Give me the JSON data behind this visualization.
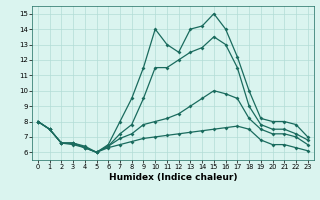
{
  "xlabel": "Humidex (Indice chaleur)",
  "xlim": [
    -0.5,
    23.5
  ],
  "ylim": [
    5.5,
    15.5
  ],
  "yticks": [
    6,
    7,
    8,
    9,
    10,
    11,
    12,
    13,
    14,
    15
  ],
  "xticks": [
    0,
    1,
    2,
    3,
    4,
    5,
    6,
    7,
    8,
    9,
    10,
    11,
    12,
    13,
    14,
    15,
    16,
    17,
    18,
    19,
    20,
    21,
    22,
    23
  ],
  "bg_color": "#daf4ef",
  "line_color": "#1a6b5e",
  "grid_color": "#b2ddd6",
  "series": [
    [
      8.0,
      7.5,
      6.6,
      6.6,
      6.4,
      6.0,
      6.5,
      8.0,
      9.5,
      11.5,
      14.0,
      13.0,
      12.5,
      14.0,
      14.2,
      15.0,
      14.0,
      12.2,
      10.0,
      8.2,
      8.0,
      8.0,
      7.8,
      7.0
    ],
    [
      8.0,
      7.5,
      6.6,
      6.6,
      6.3,
      6.0,
      6.4,
      7.2,
      7.8,
      9.5,
      11.5,
      11.5,
      12.0,
      12.5,
      12.8,
      13.5,
      13.0,
      11.5,
      9.0,
      7.8,
      7.5,
      7.5,
      7.2,
      6.8
    ],
    [
      8.0,
      7.5,
      6.6,
      6.6,
      6.3,
      6.0,
      6.4,
      6.9,
      7.2,
      7.8,
      8.0,
      8.2,
      8.5,
      9.0,
      9.5,
      10.0,
      9.8,
      9.5,
      8.2,
      7.5,
      7.2,
      7.2,
      7.0,
      6.5
    ],
    [
      8.0,
      7.5,
      6.6,
      6.5,
      6.3,
      6.0,
      6.3,
      6.5,
      6.7,
      6.9,
      7.0,
      7.1,
      7.2,
      7.3,
      7.4,
      7.5,
      7.6,
      7.7,
      7.5,
      6.8,
      6.5,
      6.5,
      6.3,
      6.1
    ]
  ]
}
